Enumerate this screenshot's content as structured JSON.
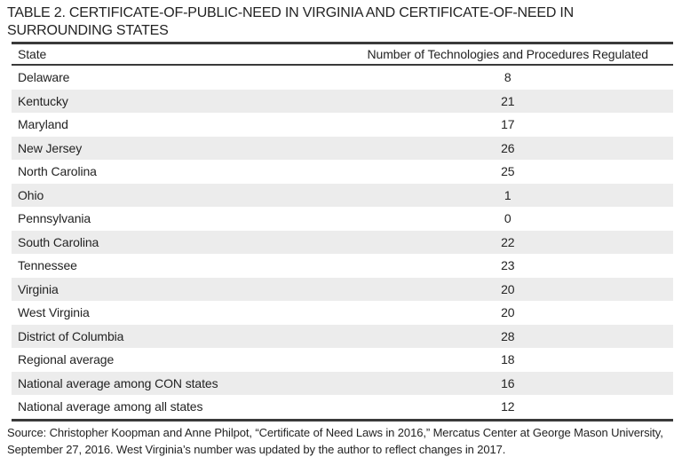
{
  "title": "TABLE 2. CERTIFICATE-OF-PUBLIC-NEED IN VIRGINIA AND CERTIFICATE-OF-NEED IN SURROUNDING STATES",
  "table": {
    "columns": [
      "State",
      "Number of Technologies and Procedures Regulated"
    ],
    "rows": [
      {
        "state": "Delaware",
        "value": "8"
      },
      {
        "state": "Kentucky",
        "value": "21"
      },
      {
        "state": "Maryland",
        "value": "17"
      },
      {
        "state": "New Jersey",
        "value": "26"
      },
      {
        "state": "North Carolina",
        "value": "25"
      },
      {
        "state": "Ohio",
        "value": "1"
      },
      {
        "state": "Pennsylvania",
        "value": "0"
      },
      {
        "state": "South Carolina",
        "value": "22"
      },
      {
        "state": "Tennessee",
        "value": "23"
      },
      {
        "state": "Virginia",
        "value": "20"
      },
      {
        "state": "West Virginia",
        "value": "20"
      },
      {
        "state": "District of Columbia",
        "value": "28"
      },
      {
        "state": "Regional average",
        "value": "18"
      },
      {
        "state": "National average among CON states",
        "value": "16"
      },
      {
        "state": "National average among all states",
        "value": "12"
      }
    ]
  },
  "source": "Source: Christopher Koopman and Anne Philpot, “Certificate of Need Laws in 2016,” Mercatus Center at George Mason University, September 27, 2016. West Virginia’s number was updated by the author to reflect changes in 2017.",
  "colors": {
    "background": "#ffffff",
    "stripe": "#ececec",
    "rule": "#3a3a3a",
    "text": "#232323"
  }
}
